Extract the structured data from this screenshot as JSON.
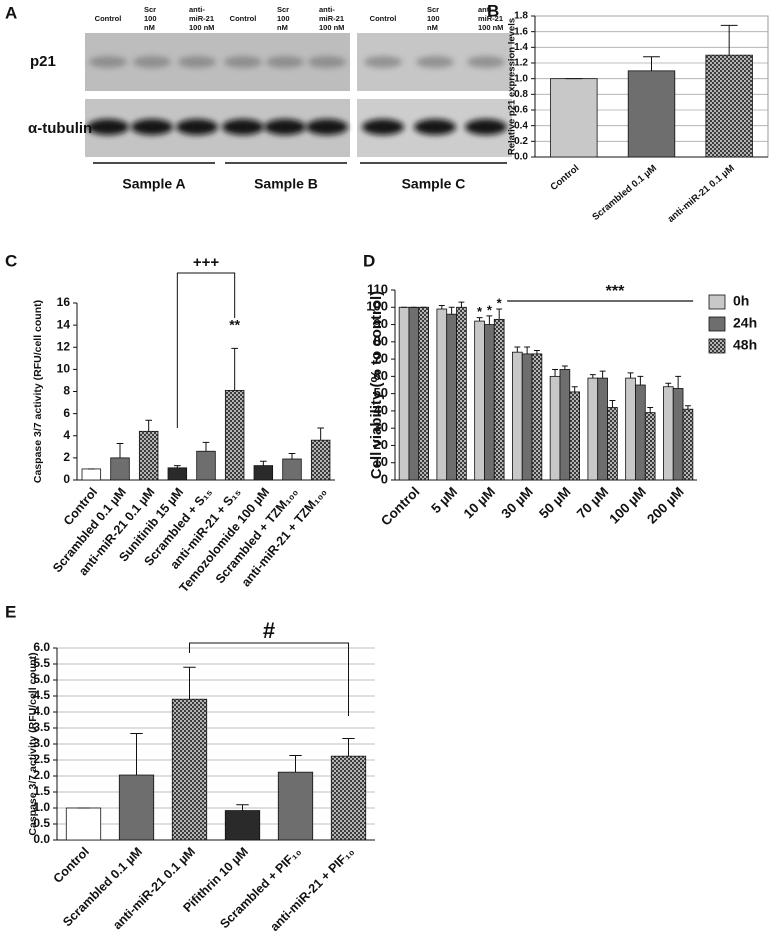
{
  "blot": {
    "label": "A",
    "lanes": [
      [
        "Control"
      ],
      [
        "Scr",
        "100",
        "nM"
      ],
      [
        "anti-",
        "miR-21",
        "100 nM"
      ],
      [
        "Control"
      ],
      [
        "Scr",
        "100",
        "nM"
      ],
      [
        "anti-",
        "miR-21",
        "100 nM"
      ],
      [
        "Control"
      ],
      [
        "Scr",
        "100",
        "nM"
      ],
      [
        "anti-",
        "miR-21",
        "100 nM"
      ]
    ],
    "rows": [
      "p21",
      "α-tubulin"
    ],
    "samples": [
      "Sample A",
      "Sample B",
      "Sample C"
    ]
  },
  "chart_data": [
    {
      "type": "bar",
      "panel": "B",
      "ylabel": "Relative p21 expression levels",
      "categories": [
        "Control",
        "Scrambled 0.1 µM",
        "anti-miR-21 0.1 µM"
      ],
      "values": [
        1.0,
        1.1,
        1.3
      ],
      "errors": [
        0,
        0.18,
        0.38
      ],
      "colors": [
        "#c8c8c8",
        "#6e6e6e",
        "#3c3c3c"
      ],
      "patterned": [
        false,
        false,
        true
      ],
      "ylim": [
        0,
        1.8
      ],
      "yticks": [
        {
          "value": 0,
          "label": "0.0"
        },
        0.2,
        0.4,
        0.6,
        0.8,
        {
          "value": 1,
          "label": "1.0"
        },
        1.2,
        1.4,
        1.6,
        1.8
      ],
      "grid": true
    },
    {
      "type": "bar",
      "panel": "C",
      "ylabel": "Caspase 3/7 activity (RFU/cell count)",
      "categories": [
        "Control",
        "Scrambled 0.1 µM",
        "anti-miR-21 0.1 µM",
        "Sunitinib 15 µM",
        "Scrambled + S₁₅",
        "anti-miR-21 + S₁₅",
        "Temozolomide 100 µM",
        "Scrambled + TZM₁₀₀",
        "anti-miR-21 + TZM₁₀₀"
      ],
      "values": [
        1.0,
        2.0,
        4.4,
        1.1,
        2.6,
        8.1,
        1.3,
        1.9,
        3.6
      ],
      "errors": [
        0,
        1.3,
        1.0,
        0.2,
        0.8,
        3.8,
        0.4,
        0.5,
        1.1
      ],
      "colors": [
        "#ffffff",
        "#6e6e6e",
        "#3c3c3c",
        "#2a2a2a",
        "#6e6e6e",
        "#3c3c3c",
        "#2a2a2a",
        "#6e6e6e",
        "#3c3c3c"
      ],
      "patterned": [
        false,
        false,
        true,
        false,
        false,
        true,
        false,
        false,
        true
      ],
      "ylim": [
        0,
        16
      ],
      "yticks": [
        0,
        2,
        4,
        6,
        8,
        10,
        12,
        14,
        16
      ],
      "grid": false,
      "annotations": [
        "+++",
        "**"
      ]
    },
    {
      "type": "grouped-bar",
      "panel": "D",
      "ylabel": "Cell viability (% to control)",
      "categories": [
        "Control",
        "5 µM",
        "10 µM",
        "30 µM",
        "50 µM",
        "70 µM",
        "100 µM",
        "200 µM"
      ],
      "series": [
        {
          "name": "0h",
          "color": "#c8c8c8",
          "patterned": false,
          "values": [
            100,
            99,
            92,
            74,
            60,
            59,
            59,
            54
          ],
          "errors": [
            0,
            2,
            2,
            3,
            4,
            2,
            3,
            2
          ]
        },
        {
          "name": "24h",
          "color": "#6e6e6e",
          "patterned": false,
          "values": [
            100,
            96,
            90,
            73,
            64,
            59,
            55,
            53
          ],
          "errors": [
            0,
            4,
            5,
            4,
            2,
            4,
            5,
            7
          ]
        },
        {
          "name": "48h",
          "color": "#3c3c3c",
          "patterned": true,
          "values": [
            100,
            100,
            93,
            73,
            51,
            42,
            39,
            41
          ],
          "errors": [
            0,
            3,
            6,
            2,
            3,
            4,
            3,
            2
          ]
        }
      ],
      "ylim": [
        0,
        110
      ],
      "yticks": [
        0,
        10,
        20,
        30,
        40,
        50,
        60,
        70,
        80,
        90,
        100,
        110
      ],
      "grid": false,
      "legend": "right",
      "annotations": [
        "*",
        "*",
        "*",
        "***"
      ]
    },
    {
      "type": "bar",
      "panel": "E",
      "ylabel": "Caspase 3/7 activity (RFU/cell count)",
      "categories": [
        "Control",
        "Scrambled 0.1 µM",
        "anti-miR-21 0.1 µM",
        "Pifithrin 10 µM",
        "Scrambled + PIF₁₀",
        "anti-miR-21 + PIF₁₀"
      ],
      "values": [
        1.0,
        2.03,
        4.4,
        0.92,
        2.12,
        2.62
      ],
      "errors": [
        0,
        1.3,
        1.0,
        0.18,
        0.52,
        0.55
      ],
      "colors": [
        "#ffffff",
        "#6e6e6e",
        "#3c3c3c",
        "#2a2a2a",
        "#6e6e6e",
        "#3c3c3c"
      ],
      "patterned": [
        false,
        false,
        true,
        false,
        false,
        true
      ],
      "ylim": [
        0,
        6
      ],
      "yticks": [
        {
          "value": 0,
          "label": "0.0"
        },
        0.5,
        {
          "value": 1,
          "label": "1.0"
        },
        1.5,
        {
          "value": 2,
          "label": "2.0"
        },
        2.5,
        {
          "value": 3,
          "label": "3.0"
        },
        3.5,
        {
          "value": 4,
          "label": "4.0"
        },
        4.5,
        {
          "value": 5,
          "label": "5.0"
        },
        5.5,
        {
          "value": 6,
          "label": "6.0"
        }
      ],
      "grid": true,
      "annotations": [
        "#"
      ]
    }
  ]
}
